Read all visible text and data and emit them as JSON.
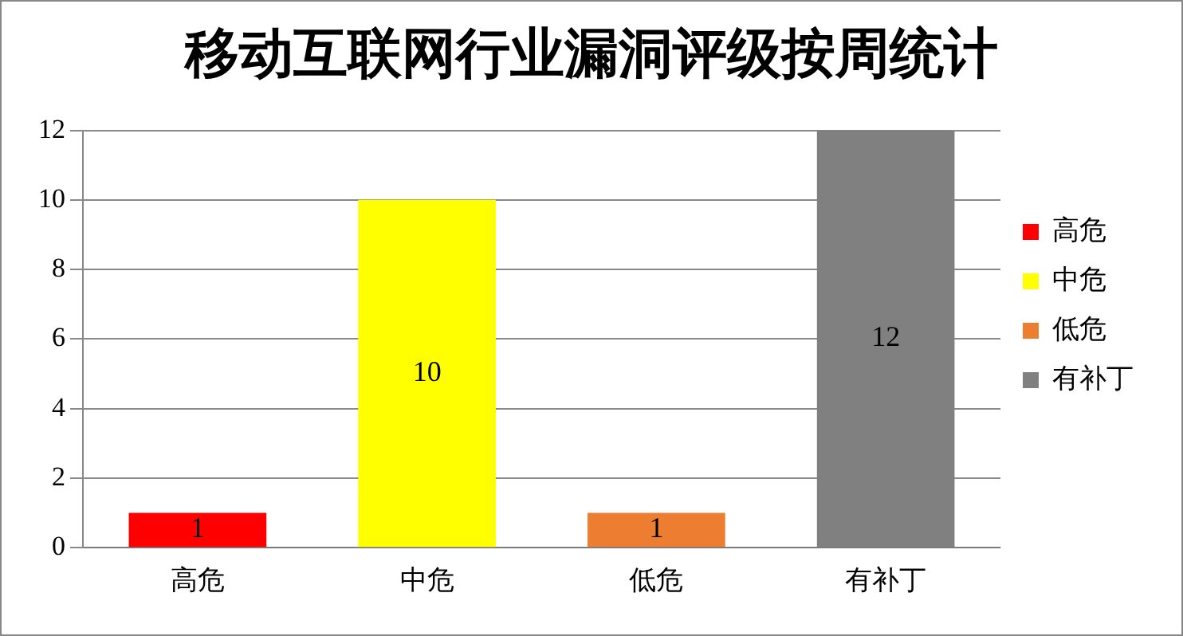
{
  "chart_data": {
    "type": "bar",
    "title": "移动互联网行业漏洞评级按周统计",
    "categories": [
      "高危",
      "中危",
      "低危",
      "有补丁"
    ],
    "series": [
      {
        "name": "高危",
        "color": "#ff0000",
        "values": [
          1,
          null,
          null,
          null
        ]
      },
      {
        "name": "中危",
        "color": "#ffff00",
        "values": [
          null,
          10,
          null,
          null
        ]
      },
      {
        "name": "低危",
        "color": "#ed7d31",
        "values": [
          null,
          null,
          1,
          null
        ]
      },
      {
        "name": "有补丁",
        "color": "#808080",
        "values": [
          null,
          null,
          null,
          12
        ]
      }
    ],
    "ylim": [
      0,
      12
    ],
    "yticks": [
      0,
      2,
      4,
      6,
      8,
      10,
      12
    ],
    "grid": "y",
    "legend": "right",
    "data_labels": true
  }
}
